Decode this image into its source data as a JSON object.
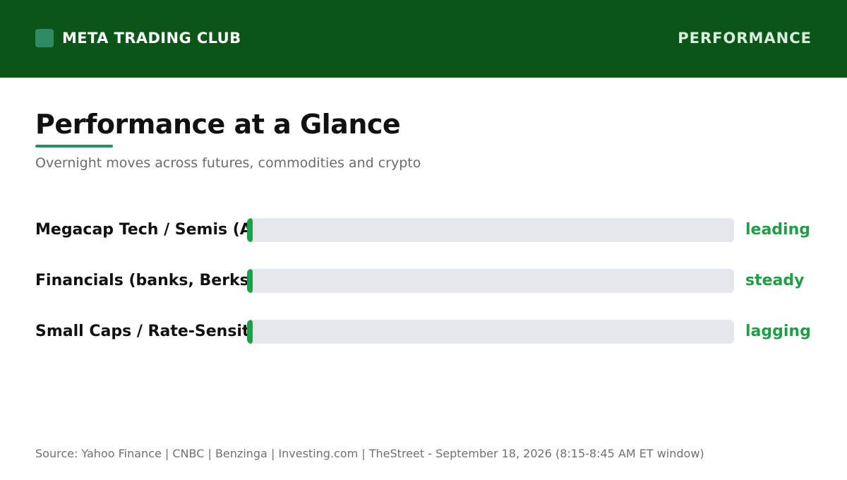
{
  "header": {
    "brand": "META TRADING CLUB",
    "section": "PERFORMANCE"
  },
  "page": {
    "title": "Performance at a Glance",
    "subtitle": "Overnight moves across futures, commodities and crypto",
    "source": "Source: Yahoo Finance | CNBC | Benzinga | Investing.com | TheStreet - September 18, 2026 (8:15-8:45 AM ET window)"
  },
  "colors": {
    "header_bg": "#0d5418",
    "accent": "#2e8b66",
    "bar_fill": "#1f9d47",
    "track": "#e4e7eb"
  },
  "chart_data": {
    "type": "bar",
    "orientation": "horizontal",
    "categories": [
      "Megacap Tech / Semis (AI i",
      "Financials (banks, Berkshir",
      "Small Caps / Rate-Sensitiv"
    ],
    "values": [
      0.01,
      0.01,
      0.01
    ],
    "status_labels": [
      "leading",
      "steady",
      "lagging"
    ],
    "xlim": [
      0,
      1
    ],
    "grid": false,
    "legend": "none"
  }
}
